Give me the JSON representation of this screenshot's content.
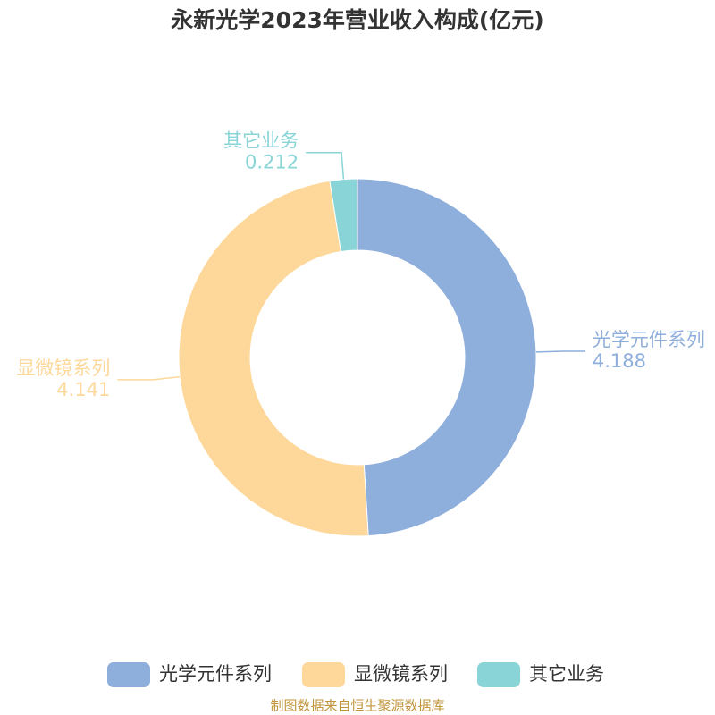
{
  "chart_data": {
    "type": "donut",
    "title": "永新光学2023年营业收入构成(亿元)",
    "categories": [
      "光学元件系列",
      "显微镜系列",
      "其它业务"
    ],
    "values": [
      4.188,
      4.141,
      0.212
    ],
    "colors": [
      "#8eaedb",
      "#fdd89a",
      "#88d4d6"
    ],
    "legend": "bottom",
    "source": "制图数据来自恒生聚源数据库"
  }
}
